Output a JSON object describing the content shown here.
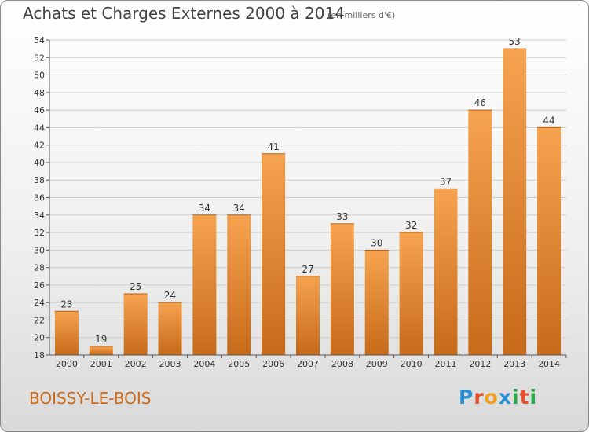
{
  "title": "Achats et Charges Externes 2000 à 2014",
  "subtitle": "(en milliers d'€)",
  "commune": "BOISSY-LE-BOIS",
  "brand": {
    "letters": [
      "P",
      "r",
      "o",
      "x",
      "i",
      "t",
      "i"
    ],
    "colors": [
      "#2a8fd0",
      "#e4502a",
      "#f0a022",
      "#2a8fd0",
      "#2aa84a",
      "#e4502a",
      "#2aa84a"
    ]
  },
  "colors": {
    "bar_light": "#f6a350",
    "bar_dark": "#c76a1a",
    "axis": "#555555",
    "grid": "#cccccc",
    "label": "#333333"
  },
  "chart_data": {
    "type": "bar",
    "categories": [
      "2000",
      "2001",
      "2002",
      "2003",
      "2004",
      "2005",
      "2006",
      "2007",
      "2008",
      "2009",
      "2010",
      "2011",
      "2012",
      "2013",
      "2014"
    ],
    "values": [
      23,
      19,
      25,
      24,
      34,
      34,
      41,
      27,
      33,
      30,
      32,
      37,
      46,
      53,
      44
    ],
    "title": "Achats et Charges Externes 2000 à 2014",
    "ylim": [
      18,
      54
    ],
    "yticks": [
      18,
      20,
      22,
      24,
      26,
      28,
      30,
      32,
      34,
      36,
      38,
      40,
      42,
      44,
      46,
      48,
      50,
      52,
      54
    ],
    "grid": true,
    "data_labels": true
  }
}
